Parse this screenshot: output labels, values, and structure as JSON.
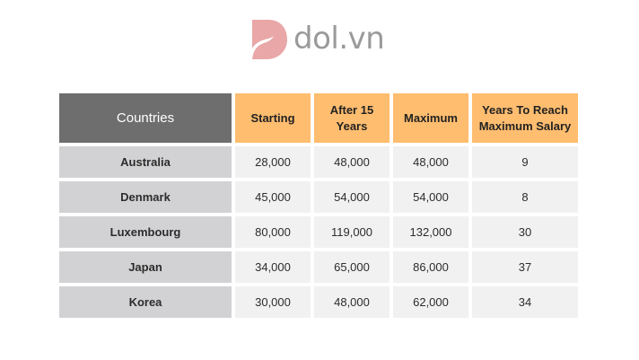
{
  "brand": {
    "name": "dol.vn",
    "logo_color": "#e9a7a8",
    "text_color": "#9a9a9a"
  },
  "chart_data": {
    "type": "table",
    "columns": [
      "Countries",
      "Starting",
      "After 15 Years",
      "Maximum",
      "Years To Reach Maximum Salary"
    ],
    "header_colors": {
      "first_column": "#6e6e6e",
      "other_columns": "#ffbd6f"
    },
    "rows": [
      {
        "country": "Australia",
        "starting": "28,000",
        "after_15": "48,000",
        "maximum": "48,000",
        "years": "9"
      },
      {
        "country": "Denmark",
        "starting": "45,000",
        "after_15": "54,000",
        "maximum": "54,000",
        "years": "8"
      },
      {
        "country": "Luxembourg",
        "starting": "80,000",
        "after_15": "119,000",
        "maximum": "132,000",
        "years": "30"
      },
      {
        "country": "Japan",
        "starting": "34,000",
        "after_15": "65,000",
        "maximum": "86,000",
        "years": "37"
      },
      {
        "country": "Korea",
        "starting": "30,000",
        "after_15": "48,000",
        "maximum": "62,000",
        "years": "34"
      }
    ]
  }
}
